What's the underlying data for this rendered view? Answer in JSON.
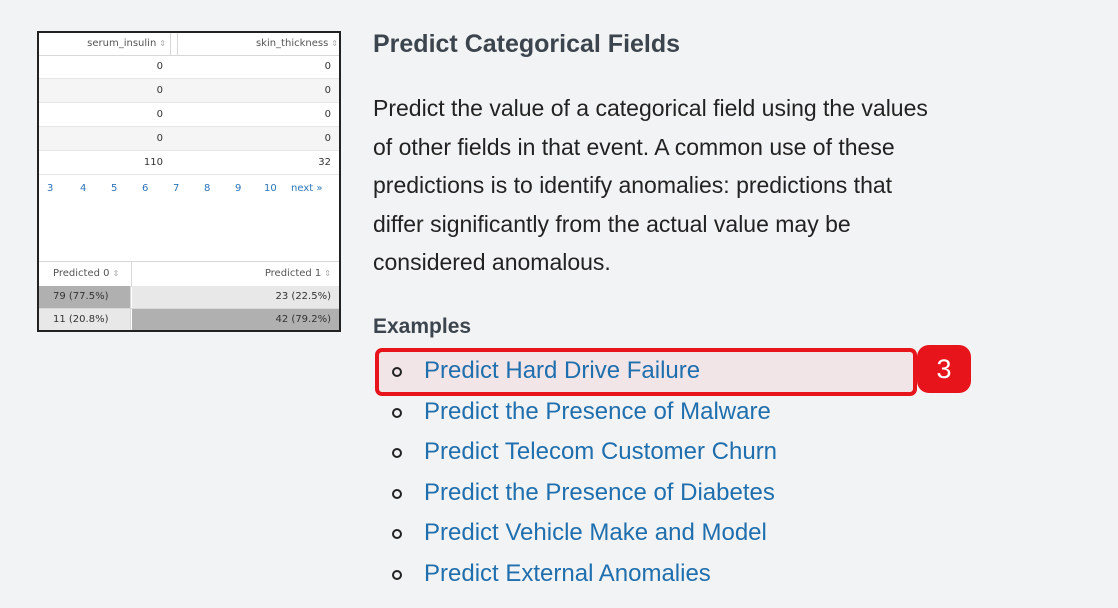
{
  "thumbnail": {
    "columns": [
      "serum_insulin",
      "skin_thickness"
    ],
    "sort_glyph": "⇕",
    "rows": [
      [
        "0",
        "0"
      ],
      [
        "0",
        "0"
      ],
      [
        "0",
        "0"
      ],
      [
        "0",
        "0"
      ],
      [
        "110",
        "32"
      ]
    ],
    "pager": [
      "3",
      "4",
      "5",
      "6",
      "7",
      "8",
      "9",
      "10",
      "next »"
    ],
    "predicted_headers": [
      "Predicted 0",
      "Predicted 1"
    ],
    "predicted_rows": [
      [
        "79 (77.5%)",
        "23 (22.5%)"
      ],
      [
        "11 (20.8%)",
        "42 (79.2%)"
      ]
    ]
  },
  "main": {
    "title": "Predict Categorical Fields",
    "description_lines": [
      "Predict the value of a categorical field using the values",
      "of other fields in that event. A common use of these",
      "predictions is to identify anomalies: predictions that",
      "differ significantly from the actual value may be",
      "considered anomalous."
    ],
    "examples_heading": "Examples",
    "examples": [
      "Predict Hard Drive Failure",
      "Predict the Presence of Malware",
      "Predict Telecom Customer Churn",
      "Predict the Presence of Diabetes",
      "Predict Vehicle Make and Model",
      "Predict External Anomalies"
    ]
  },
  "annotation": {
    "step_number": "3",
    "color": "#e8141c"
  },
  "colors": {
    "link": "#1f6fae",
    "heading": "#3c444d",
    "background": "#f2f3f4"
  }
}
